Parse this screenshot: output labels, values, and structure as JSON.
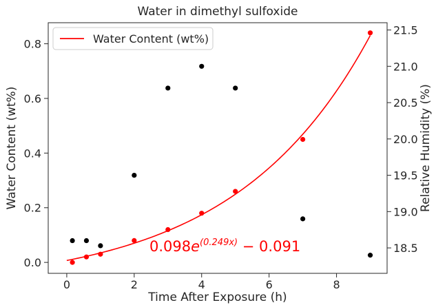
{
  "chart_data": {
    "type": "scatter",
    "title": "Water in dimethyl sulfoxide",
    "xlabel": "Time After Exposure (h)",
    "ylabel": "Water Content (wt%)",
    "ylabel_right": "Relative Humidity (%)",
    "xlim": [
      -0.55,
      9.5
    ],
    "ylim": [
      -0.04,
      0.877
    ],
    "ylim_right": [
      18.15,
      21.6
    ],
    "x_ticks": [
      "0",
      "2",
      "4",
      "6",
      "8"
    ],
    "y_ticks": [
      "0.0",
      "0.2",
      "0.4",
      "0.6",
      "0.8"
    ],
    "y_ticks_right": [
      "18.5",
      "19.0",
      "19.5",
      "20.0",
      "20.5",
      "21.0",
      "21.5"
    ],
    "grid": false,
    "legend_position": "top-left",
    "colors": {
      "water": "#ff0000",
      "humidity": "#000000",
      "fit": "#ff0000"
    },
    "series": [
      {
        "axis": "left",
        "x": [
          0.167,
          0.583,
          1.0,
          2.0,
          3.0,
          4.0,
          5.0,
          7.0,
          9.0
        ],
        "values": [
          0.0,
          0.02,
          0.03,
          0.08,
          0.12,
          0.18,
          0.26,
          0.45,
          0.84
        ]
      },
      {
        "axis": "right",
        "x": [
          0.167,
          0.583,
          1.0,
          2.0,
          3.0,
          4.0,
          5.0,
          7.0,
          9.0
        ],
        "values": [
          18.6,
          18.6,
          18.53,
          19.5,
          20.7,
          21.0,
          20.7,
          18.9,
          18.4
        ]
      },
      {
        "name": "Water Content (wt%)",
        "type": "line",
        "axis": "left",
        "fit": {
          "a": 0.098,
          "b": 0.249,
          "c": -0.091,
          "x_range": [
            0.0,
            9.0
          ]
        }
      }
    ],
    "annotations": [
      {
        "parts": [
          "0.098",
          "e",
          "(0.249x)",
          " − 0.091"
        ],
        "x": 2.2,
        "y": 0.04,
        "color": "#ff0000"
      }
    ]
  }
}
